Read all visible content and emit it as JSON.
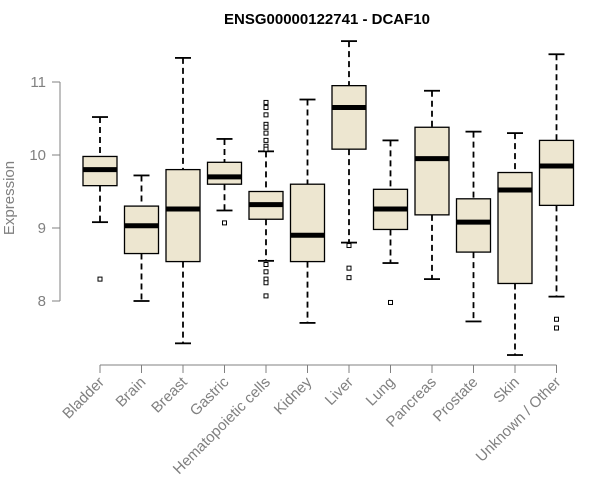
{
  "chart_data": {
    "type": "box",
    "title": "ENSG00000122741 - DCAF10",
    "xlabel": "",
    "ylabel": "Expression",
    "ylim": [
      7.2,
      11.6
    ],
    "yticks": [
      8,
      9,
      10,
      11
    ],
    "grid": false,
    "categories": [
      "Bladder",
      "Brain",
      "Breast",
      "Gastric",
      "Hematopoietic cells",
      "Kidney",
      "Liver",
      "Lung",
      "Pancreas",
      "Prostate",
      "Skin",
      "Unknown / Other"
    ],
    "boxes": [
      {
        "category": "Bladder",
        "whisker_low": 9.08,
        "q1": 9.58,
        "median": 9.8,
        "q3": 9.98,
        "whisker_high": 10.52,
        "outliers": [
          8.3
        ]
      },
      {
        "category": "Brain",
        "whisker_low": 8.0,
        "q1": 8.65,
        "median": 9.03,
        "q3": 9.3,
        "whisker_high": 9.72,
        "outliers": []
      },
      {
        "category": "Breast",
        "whisker_low": 7.42,
        "q1": 8.54,
        "median": 9.26,
        "q3": 9.8,
        "whisker_high": 11.33,
        "outliers": []
      },
      {
        "category": "Gastric",
        "whisker_low": 9.24,
        "q1": 9.6,
        "median": 9.7,
        "q3": 9.9,
        "whisker_high": 10.22,
        "outliers": [
          9.07
        ]
      },
      {
        "category": "Hematopoietic cells",
        "whisker_low": 8.55,
        "q1": 9.12,
        "median": 9.32,
        "q3": 9.5,
        "whisker_high": 10.05,
        "outliers": [
          10.72,
          10.65,
          10.55,
          10.42,
          10.38,
          10.3,
          10.2,
          10.12,
          10.08,
          8.5,
          8.4,
          8.3,
          8.25,
          8.07
        ]
      },
      {
        "category": "Kidney",
        "whisker_low": 7.7,
        "q1": 8.54,
        "median": 8.9,
        "q3": 9.6,
        "whisker_high": 10.76,
        "outliers": []
      },
      {
        "category": "Liver",
        "whisker_low": 8.8,
        "q1": 10.08,
        "median": 10.65,
        "q3": 10.95,
        "whisker_high": 11.56,
        "outliers": [
          8.76,
          8.45,
          8.32
        ]
      },
      {
        "category": "Lung",
        "whisker_low": 8.52,
        "q1": 8.98,
        "median": 9.26,
        "q3": 9.53,
        "whisker_high": 10.2,
        "outliers": [
          7.98
        ]
      },
      {
        "category": "Pancreas",
        "whisker_low": 8.3,
        "q1": 9.18,
        "median": 9.95,
        "q3": 10.38,
        "whisker_high": 10.88,
        "outliers": []
      },
      {
        "category": "Prostate",
        "whisker_low": 7.72,
        "q1": 8.67,
        "median": 9.08,
        "q3": 9.4,
        "whisker_high": 10.32,
        "outliers": []
      },
      {
        "category": "Skin",
        "whisker_low": 7.26,
        "q1": 8.24,
        "median": 9.52,
        "q3": 9.76,
        "whisker_high": 10.3,
        "outliers": []
      },
      {
        "category": "Unknown / Other",
        "whisker_low": 8.06,
        "q1": 9.31,
        "median": 9.85,
        "q3": 10.2,
        "whisker_high": 11.38,
        "outliers": [
          7.75,
          7.63
        ]
      }
    ],
    "colors": {
      "box_fill": "#ede6d0",
      "box_stroke": "#000000",
      "median": "#000000",
      "axis": "#808080",
      "title": "#000000"
    }
  }
}
